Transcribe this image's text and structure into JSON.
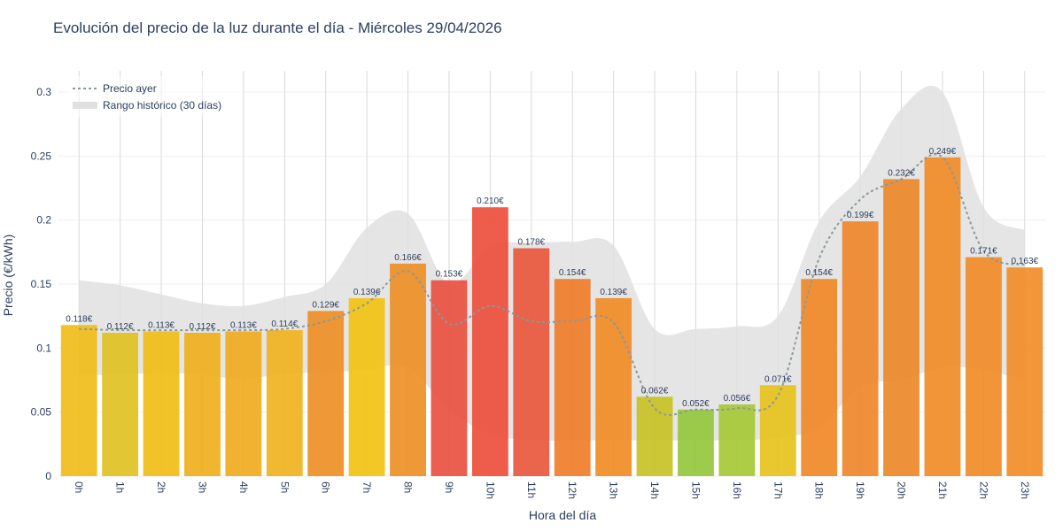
{
  "chart_data": {
    "type": "bar",
    "title": "Evolución del precio de la luz durante el día - Miércoles 29/04/2026",
    "xlabel": "Hora del día",
    "ylabel": "Precio (€/kWh)",
    "ylim": [
      0,
      0.3
    ],
    "yticks": [
      "0",
      "0.05",
      "0.1",
      "0.15",
      "0.2",
      "0.25",
      "0.3"
    ],
    "categories": [
      "0h",
      "1h",
      "2h",
      "3h",
      "4h",
      "5h",
      "6h",
      "7h",
      "8h",
      "9h",
      "10h",
      "11h",
      "12h",
      "13h",
      "14h",
      "15h",
      "16h",
      "17h",
      "18h",
      "19h",
      "20h",
      "21h",
      "22h",
      "23h"
    ],
    "series": [
      {
        "type": "bar",
        "values": [
          0.118,
          0.112,
          0.113,
          0.112,
          0.113,
          0.114,
          0.129,
          0.139,
          0.166,
          0.153,
          0.21,
          0.178,
          0.154,
          0.139,
          0.062,
          0.052,
          0.056,
          0.071,
          0.154,
          0.199,
          0.232,
          0.249,
          0.171,
          0.163
        ],
        "labels": [
          "0.118€",
          "0.112€",
          "0.113€",
          "0.112€",
          "0.113€",
          "0.114€",
          "0.129€",
          "0.139€",
          "0.166€",
          "0.153€",
          "0.210€",
          "0.178€",
          "0.154€",
          "0.139€",
          "0.062€",
          "0.052€",
          "0.056€",
          "0.071€",
          "0.154€",
          "0.199€",
          "0.232€",
          "0.249€",
          "0.171€",
          "0.163€"
        ],
        "colors": [
          "#f0bb14",
          "#e0c01e",
          "#f0bc12",
          "#efae1a",
          "#efa91b",
          "#efb11b",
          "#ec8d22",
          "#f2c20e",
          "#ec8d22",
          "#e84e3c",
          "#ec4b38",
          "#e85437",
          "#ee7a26",
          "#ef8a21",
          "#c7c120",
          "#92c73a",
          "#a5c832",
          "#e5c118",
          "#ef8623",
          "#ef8427",
          "#eb8626",
          "#ef8a22",
          "#ef8a22",
          "#f28b24"
        ]
      },
      {
        "type": "line",
        "name": "Precio ayer",
        "values": [
          0.115,
          0.114,
          0.114,
          0.114,
          0.114,
          0.115,
          0.121,
          0.135,
          0.16,
          0.119,
          0.133,
          0.121,
          0.121,
          0.12,
          0.053,
          0.052,
          0.053,
          0.063,
          0.17,
          0.216,
          0.232,
          0.249,
          0.176,
          0.165
        ]
      },
      {
        "type": "area-band",
        "name": "Rango histórico (30 días)",
        "upper": [
          0.153,
          0.149,
          0.142,
          0.135,
          0.133,
          0.14,
          0.15,
          0.194,
          0.205,
          0.15,
          0.18,
          0.182,
          0.183,
          0.18,
          0.115,
          0.115,
          0.117,
          0.125,
          0.199,
          0.234,
          0.287,
          0.3,
          0.21,
          0.192
        ],
        "lower": [
          0.079,
          0.079,
          0.081,
          0.079,
          0.076,
          0.08,
          0.081,
          0.083,
          0.085,
          0.052,
          0.033,
          0.028,
          0.028,
          0.028,
          0.028,
          0.028,
          0.028,
          0.03,
          0.038,
          0.07,
          0.075,
          0.085,
          0.083,
          0.075
        ]
      }
    ],
    "legend": {
      "position": "top-left"
    },
    "grid": true,
    "colors": {
      "ayer_line": "#8b989c",
      "band": "#e0e0e0"
    }
  }
}
